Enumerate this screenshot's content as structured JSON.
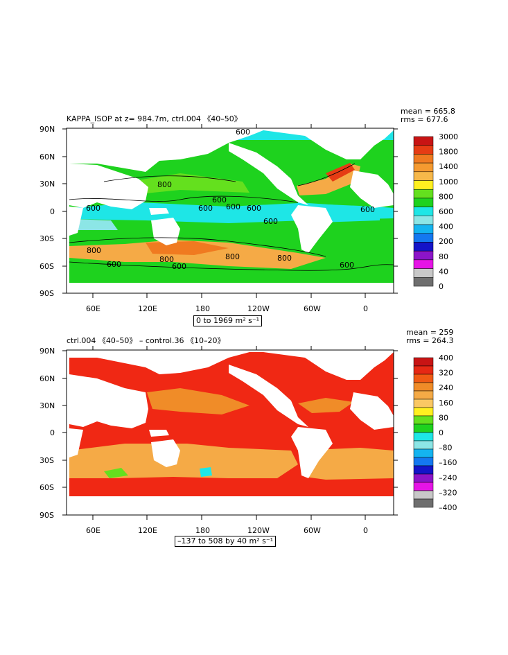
{
  "panels": [
    {
      "title": "KAPPA_ISOP at z= 984.7m, ctrl.004 《40–50》",
      "mean": "mean = 665.8",
      "rms": "rms = 677.6",
      "range": "0 to 1969 m² s⁻¹",
      "lat_labels": [
        "90N",
        "60N",
        "30N",
        "0",
        "30S",
        "60S",
        "90S"
      ],
      "lon_labels": [
        "60E",
        "120E",
        "180",
        "120W",
        "60W",
        "0"
      ],
      "colorbar_labels": [
        "3000",
        "1800",
        "1400",
        "1000",
        "800",
        "600",
        "400",
        "200",
        "80",
        "40",
        "0"
      ],
      "colorbar_colors": [
        "#c81414",
        "#e63c14",
        "#f07a20",
        "#f59a30",
        "#f7b84a",
        "#fff020",
        "#64e01e",
        "#1ed21e",
        "#1ee6e6",
        "#8ce6e6",
        "#14b4f0",
        "#1478f0",
        "#1414c8",
        "#8c14c8",
        "#e614e6",
        "#c8c8c8",
        "#6e6e6e"
      ],
      "contour_labels": [
        "800",
        "600",
        "600",
        "600",
        "600",
        "600",
        "600",
        "600",
        "600",
        "800",
        "600",
        "800",
        "800",
        "600",
        "600",
        "800"
      ]
    },
    {
      "title": "ctrl.004 《40–50》 – control.36 《10–20》",
      "mean": "mean = 259",
      "rms": "rms = 264.3",
      "range": "–137 to 508 by 40 m² s⁻¹",
      "lat_labels": [
        "90N",
        "60N",
        "30N",
        "0",
        "30S",
        "60S",
        "90S"
      ],
      "lon_labels": [
        "60E",
        "120E",
        "180",
        "120W",
        "60W",
        "0"
      ],
      "colorbar_labels": [
        "400",
        "320",
        "240",
        "160",
        "80",
        "0",
        "–80",
        "–160",
        "–240",
        "–320",
        "–400"
      ],
      "colorbar_colors": [
        "#c81414",
        "#e62814",
        "#f05a14",
        "#f08c28",
        "#f5aa46",
        "#fac864",
        "#fff020",
        "#64e01e",
        "#1ed21e",
        "#1ee6e6",
        "#8ce6e6",
        "#14b4f0",
        "#1478f0",
        "#1414c8",
        "#8c14c8",
        "#e614e6",
        "#c8c8c8",
        "#6e6e6e"
      ]
    }
  ]
}
